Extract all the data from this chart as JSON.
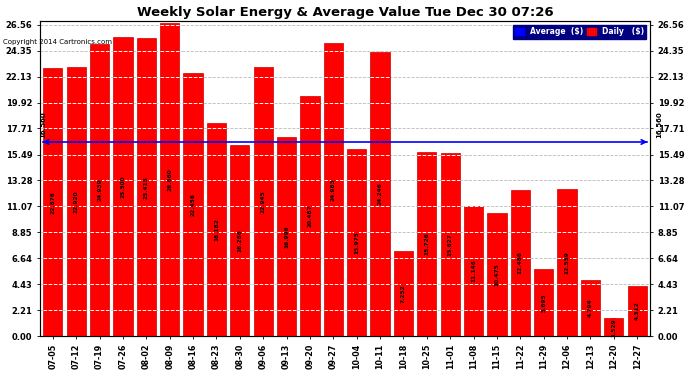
{
  "title": "Weekly Solar Energy & Average Value Tue Dec 30 07:26",
  "copyright": "Copyright 2014 Cartronics.com",
  "categories": [
    "07-05",
    "07-12",
    "07-19",
    "07-26",
    "08-02",
    "08-09",
    "08-16",
    "08-23",
    "08-30",
    "09-06",
    "09-13",
    "09-20",
    "09-27",
    "10-04",
    "10-11",
    "10-18",
    "10-25",
    "11-01",
    "11-08",
    "11-15",
    "11-22",
    "11-29",
    "12-06",
    "12-13",
    "12-20",
    "12-27"
  ],
  "values": [
    22.876,
    22.92,
    24.939,
    25.5,
    25.415,
    26.66,
    22.456,
    18.182,
    16.286,
    22.945,
    16.996,
    20.487,
    24.983,
    15.975,
    24.246,
    7.252,
    15.726,
    15.627,
    11.146,
    10.475,
    12.486,
    5.695,
    12.559,
    4.794,
    1.529,
    4.312
  ],
  "average_value": 16.56,
  "bar_color": "#ff0000",
  "average_line_color": "#0000ff",
  "yticks": [
    0.0,
    2.21,
    4.43,
    6.64,
    8.85,
    11.07,
    13.28,
    15.49,
    17.71,
    19.92,
    22.13,
    24.35,
    26.56
  ],
  "ymax": 26.56,
  "ymin": 0.0,
  "background_color": "#ffffff",
  "grid_color": "#cccccc",
  "legend_average_color": "#0000ff",
  "legend_daily_color": "#ff0000",
  "average_label": "Average  ($)",
  "daily_label": "Daily   ($)"
}
